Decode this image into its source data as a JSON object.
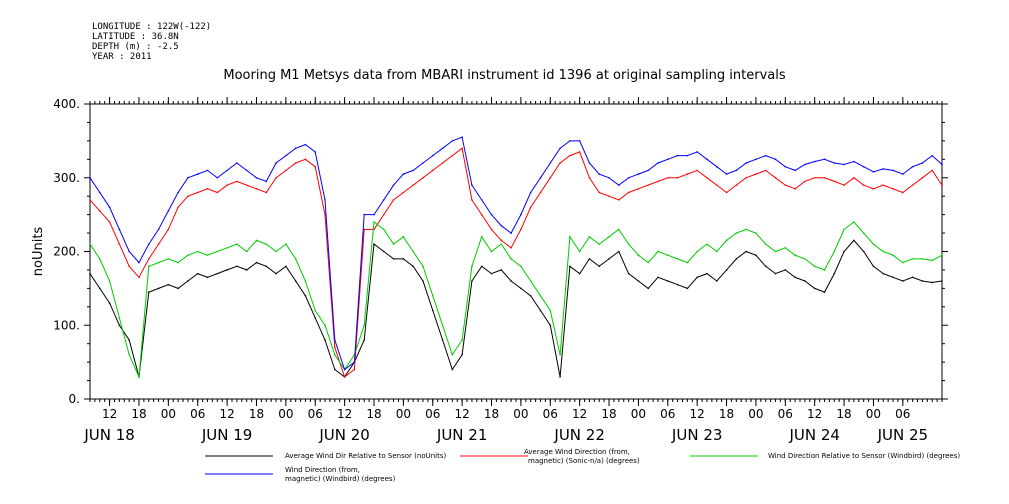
{
  "header": {
    "meta_lines": [
      "LONGITUDE : 122W(-122)",
      "LATITUDE : 36.8N",
      "DEPTH (m) : -2.5",
      "YEAR : 2011"
    ],
    "title": "Mooring M1 Metsys data from MBARI instrument id 1396 at original sampling intervals"
  },
  "chart_data": {
    "type": "line",
    "title": "Mooring M1 Metsys data from MBARI instrument id 1396 at original sampling intervals",
    "ylabel": "noUnits",
    "xlabel": "",
    "ylim": [
      0,
      400
    ],
    "yticks": [
      0,
      100,
      200,
      300,
      400
    ],
    "ytick_labels": [
      "0.",
      "100.",
      "200.",
      "300.",
      "400."
    ],
    "xlim_hours": [
      8,
      182
    ],
    "hour_ticks": [
      {
        "h": 12,
        "label": "12"
      },
      {
        "h": 18,
        "label": "18"
      },
      {
        "h": 24,
        "label": "00"
      },
      {
        "h": 30,
        "label": "06"
      },
      {
        "h": 36,
        "label": "12"
      },
      {
        "h": 42,
        "label": "18"
      },
      {
        "h": 48,
        "label": "00"
      },
      {
        "h": 54,
        "label": "06"
      },
      {
        "h": 60,
        "label": "12"
      },
      {
        "h": 66,
        "label": "18"
      },
      {
        "h": 72,
        "label": "00"
      },
      {
        "h": 78,
        "label": "06"
      },
      {
        "h": 84,
        "label": "12"
      },
      {
        "h": 90,
        "label": "18"
      },
      {
        "h": 96,
        "label": "00"
      },
      {
        "h": 102,
        "label": "06"
      },
      {
        "h": 108,
        "label": "12"
      },
      {
        "h": 114,
        "label": "18"
      },
      {
        "h": 120,
        "label": "00"
      },
      {
        "h": 126,
        "label": "06"
      },
      {
        "h": 132,
        "label": "12"
      },
      {
        "h": 138,
        "label": "18"
      },
      {
        "h": 144,
        "label": "00"
      },
      {
        "h": 150,
        "label": "06"
      },
      {
        "h": 156,
        "label": "12"
      },
      {
        "h": 162,
        "label": "18"
      },
      {
        "h": 168,
        "label": "00"
      },
      {
        "h": 174,
        "label": "06"
      }
    ],
    "date_labels": [
      {
        "h": 12,
        "label": "JUN 18"
      },
      {
        "h": 36,
        "label": "JUN 19"
      },
      {
        "h": 60,
        "label": "JUN 20"
      },
      {
        "h": 84,
        "label": "JUN 21"
      },
      {
        "h": 108,
        "label": "JUN 22"
      },
      {
        "h": 132,
        "label": "JUN 23"
      },
      {
        "h": 156,
        "label": "JUN 24"
      },
      {
        "h": 174,
        "label": "JUN 25"
      }
    ],
    "x_hours": [
      8,
      10,
      12,
      14,
      16,
      18,
      20,
      22,
      24,
      26,
      28,
      30,
      32,
      34,
      36,
      38,
      40,
      42,
      44,
      46,
      48,
      50,
      52,
      54,
      56,
      58,
      60,
      62,
      64,
      66,
      68,
      70,
      72,
      74,
      76,
      78,
      80,
      82,
      84,
      86,
      88,
      90,
      92,
      94,
      96,
      98,
      100,
      102,
      104,
      106,
      108,
      110,
      112,
      114,
      116,
      118,
      120,
      122,
      124,
      126,
      128,
      130,
      132,
      134,
      136,
      138,
      140,
      142,
      144,
      146,
      148,
      150,
      152,
      154,
      156,
      158,
      160,
      162,
      164,
      166,
      168,
      170,
      172,
      174,
      176,
      178,
      180,
      182
    ],
    "series": [
      {
        "name": "Average Wind Dir Relative to Sensor (noUnits)",
        "color": "#000000",
        "values": [
          170,
          150,
          130,
          100,
          80,
          30,
          145,
          150,
          155,
          150,
          160,
          170,
          165,
          170,
          175,
          180,
          175,
          185,
          180,
          170,
          180,
          160,
          140,
          110,
          80,
          40,
          30,
          50,
          80,
          210,
          200,
          190,
          190,
          180,
          160,
          120,
          80,
          40,
          60,
          160,
          180,
          170,
          175,
          160,
          150,
          140,
          120,
          100,
          30,
          180,
          170,
          190,
          180,
          190,
          200,
          170,
          160,
          150,
          165,
          160,
          155,
          150,
          165,
          170,
          160,
          175,
          190,
          200,
          195,
          180,
          170,
          175,
          165,
          160,
          150,
          145,
          170,
          200,
          215,
          200,
          180,
          170,
          165,
          160,
          165,
          160,
          158,
          160
        ]
      },
      {
        "name": "Average Wind Direction (from, magnetic) (Sonic-n/a) (degrees)",
        "color": "#ff0000",
        "values": [
          270,
          255,
          240,
          210,
          180,
          165,
          190,
          210,
          230,
          260,
          275,
          280,
          285,
          280,
          290,
          295,
          290,
          285,
          280,
          300,
          310,
          320,
          325,
          315,
          250,
          70,
          30,
          40,
          230,
          230,
          250,
          270,
          280,
          290,
          300,
          310,
          320,
          330,
          340,
          270,
          250,
          230,
          215,
          205,
          230,
          260,
          280,
          300,
          320,
          330,
          335,
          300,
          280,
          275,
          270,
          280,
          285,
          290,
          295,
          300,
          300,
          305,
          310,
          300,
          290,
          280,
          290,
          300,
          305,
          310,
          300,
          290,
          285,
          295,
          300,
          300,
          295,
          290,
          300,
          290,
          285,
          290,
          285,
          280,
          290,
          300,
          310,
          290
        ]
      },
      {
        "name": "Wind Direction Relative to Sensor (Windbird) (degrees)",
        "color": "#00cc00",
        "values": [
          210,
          190,
          160,
          110,
          60,
          30,
          180,
          185,
          190,
          185,
          195,
          200,
          195,
          200,
          205,
          210,
          200,
          215,
          210,
          200,
          210,
          190,
          160,
          120,
          100,
          60,
          40,
          60,
          100,
          240,
          230,
          210,
          220,
          200,
          180,
          140,
          100,
          60,
          80,
          180,
          220,
          200,
          210,
          190,
          180,
          160,
          140,
          120,
          60,
          220,
          200,
          220,
          210,
          220,
          230,
          210,
          195,
          185,
          200,
          195,
          190,
          185,
          200,
          210,
          200,
          215,
          225,
          230,
          225,
          210,
          200,
          205,
          195,
          190,
          180,
          175,
          200,
          230,
          240,
          225,
          210,
          200,
          195,
          185,
          190,
          190,
          188,
          195
        ]
      },
      {
        "name": "Wind Direction (from, magnetic) (Windbird) (degrees)",
        "color": "#0000ff",
        "values": [
          300,
          280,
          260,
          230,
          200,
          185,
          210,
          230,
          255,
          280,
          300,
          305,
          310,
          300,
          310,
          320,
          310,
          300,
          295,
          320,
          330,
          340,
          345,
          335,
          270,
          80,
          40,
          50,
          250,
          250,
          270,
          290,
          305,
          310,
          320,
          330,
          340,
          350,
          355,
          290,
          270,
          250,
          235,
          225,
          250,
          280,
          300,
          320,
          340,
          350,
          350,
          320,
          305,
          300,
          290,
          300,
          305,
          310,
          320,
          325,
          330,
          330,
          335,
          325,
          315,
          305,
          310,
          320,
          325,
          330,
          325,
          315,
          310,
          318,
          322,
          325,
          320,
          318,
          322,
          315,
          308,
          312,
          310,
          305,
          315,
          320,
          330,
          318
        ]
      }
    ],
    "grid": false,
    "legend_position": "bottom"
  },
  "legend": {
    "items": [
      {
        "label_line1": "Average Wind Dir Relative to Sensor (noUnits)",
        "label_line2": "",
        "color": "#000000"
      },
      {
        "label_line1": "Average Wind Direction (from,",
        "label_line2": "magnetic) (Sonic-n/a) (degrees)",
        "color": "#ff0000"
      },
      {
        "label_line1": "Wind Direction Relative to Sensor (Windbird) (degrees)",
        "label_line2": "",
        "color": "#00cc00"
      },
      {
        "label_line1": "Wind Direction (from,",
        "label_line2": "magnetic) (Windbird) (degrees)",
        "color": "#0000ff"
      }
    ]
  }
}
